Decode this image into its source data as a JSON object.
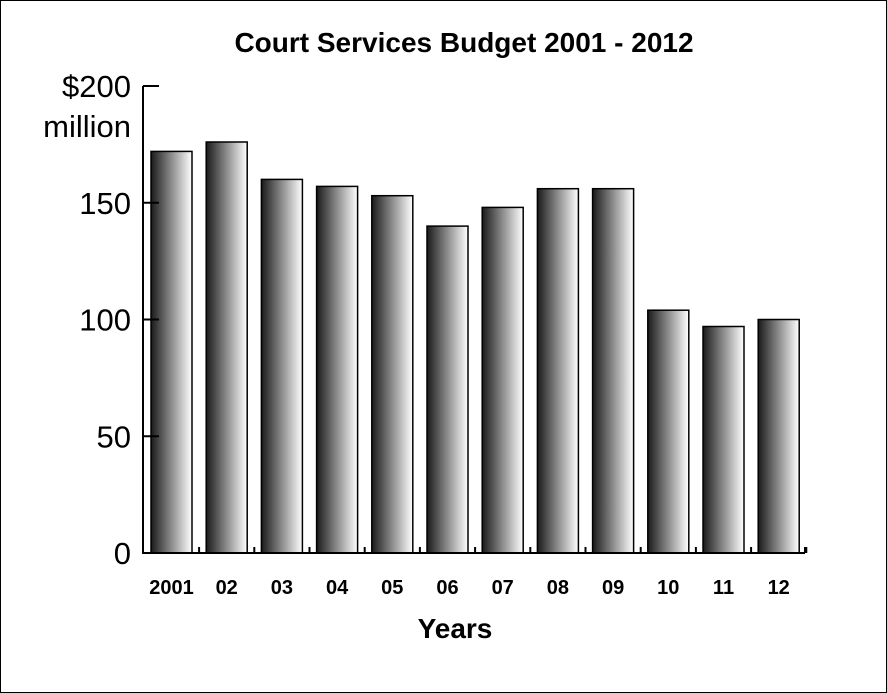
{
  "chart_data": {
    "type": "bar",
    "title": "Court Services Budget 2001 - 2012",
    "xlabel": "Years",
    "ylabel": "",
    "ylim": [
      0,
      200
    ],
    "ytick_values": [
      0,
      50,
      100,
      150,
      200
    ],
    "ytick_labels": [
      "0",
      "50",
      "100",
      "150",
      "$200"
    ],
    "ytick_unit_label": "million",
    "categories": [
      "2001",
      "02",
      "03",
      "04",
      "05",
      "06",
      "07",
      "08",
      "09",
      "10",
      "11",
      "12"
    ],
    "values": [
      172,
      176,
      160,
      157,
      153,
      140,
      148,
      156,
      156,
      104,
      97,
      100
    ],
    "grid": false,
    "legend": "none",
    "bar_gradient": [
      "#1a1a1a",
      "#ffffff"
    ]
  }
}
